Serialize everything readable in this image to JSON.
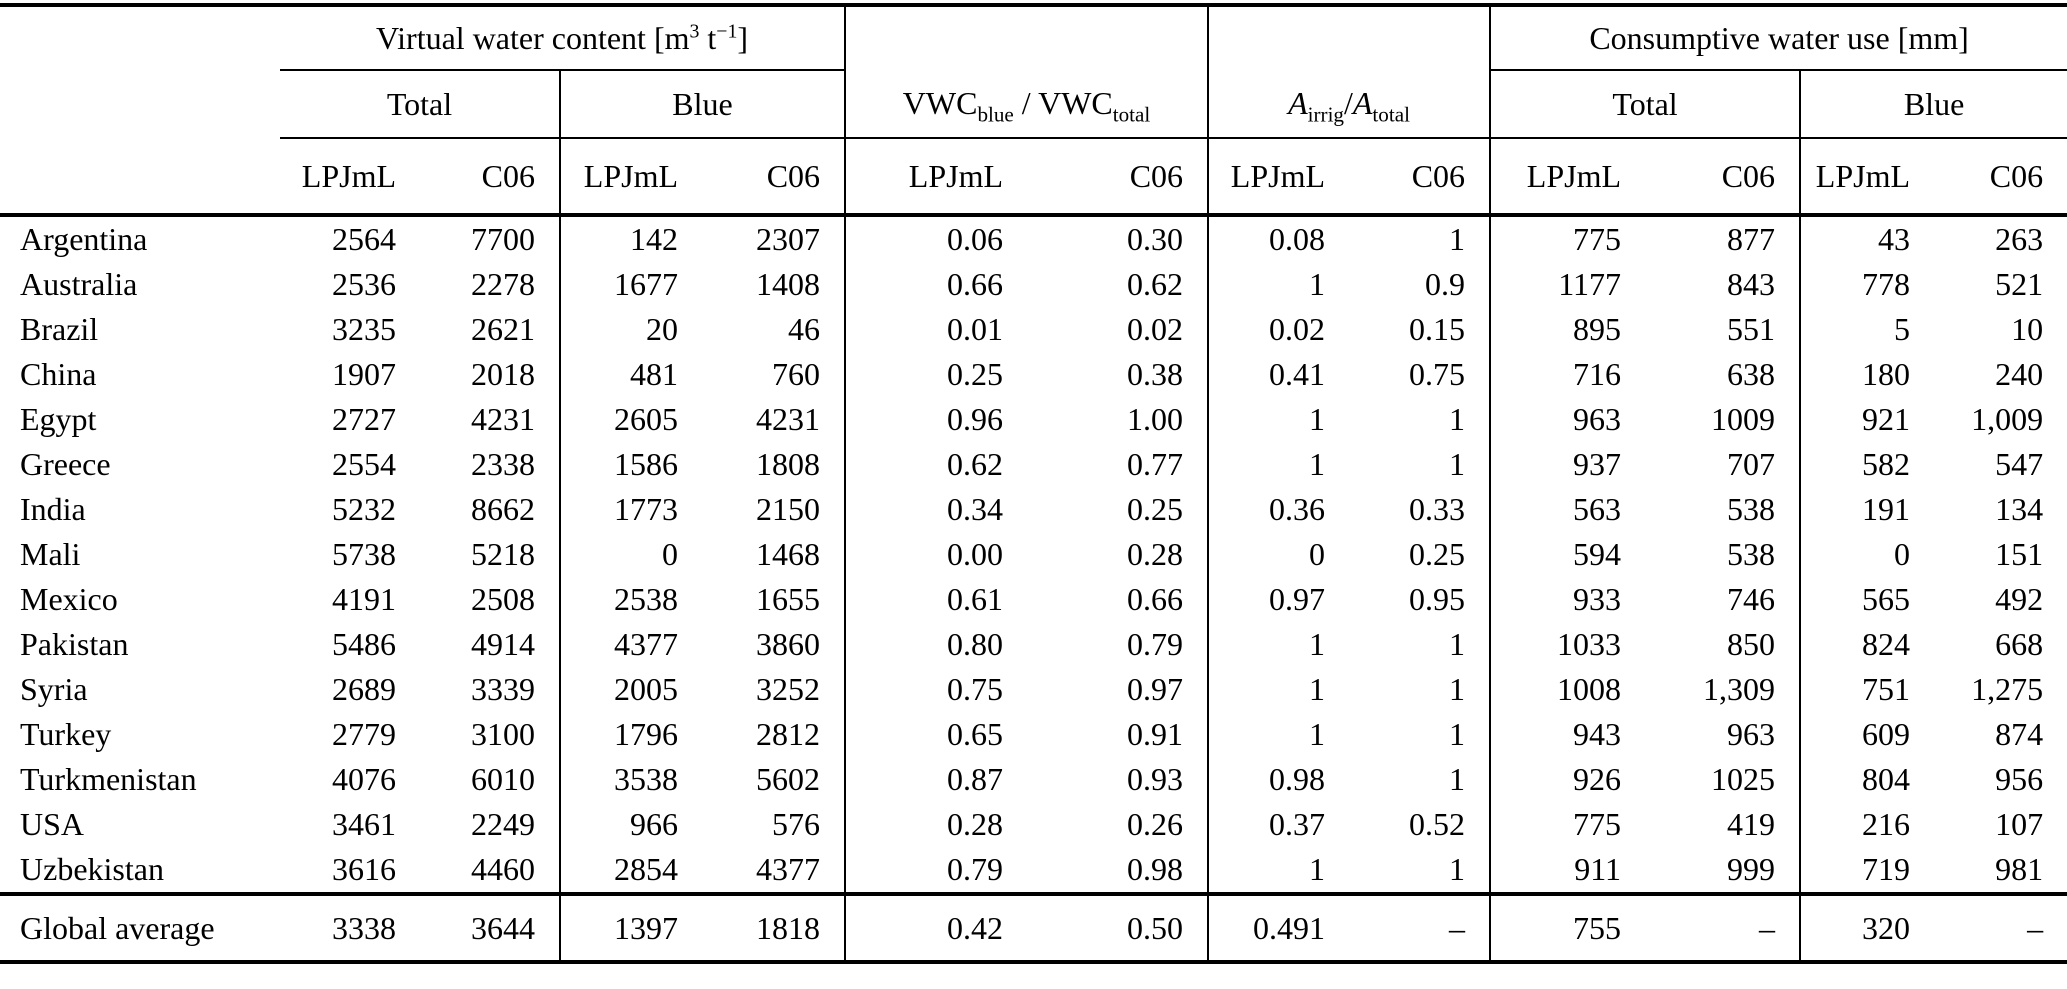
{
  "page": {
    "background": "#ffffff",
    "text_color": "#000000"
  },
  "headers": {
    "vwc": {
      "pre": "Virtual water content [m",
      "sup1": "3",
      "mid": " t",
      "sup2": "−1",
      "post": "]"
    },
    "cwu": "Consumptive water use [mm]",
    "total": "Total",
    "blue": "Blue",
    "vwc_ratio": {
      "base1": "VWC",
      "sub1": "blue",
      "sep": " / ",
      "base2": "VWC",
      "sub2": "total"
    },
    "area_ratio": {
      "base1": "A",
      "sub1": "irrig",
      "sep": "/",
      "base2": "A",
      "sub2": "total"
    },
    "lpjml": "LPJmL",
    "c06": "C06"
  },
  "table": {
    "rows": [
      [
        "Argentina",
        "2564",
        "7700",
        "142",
        "2307",
        "0.06",
        "0.30",
        "0.08",
        "1",
        "775",
        "877",
        "43",
        "263"
      ],
      [
        "Australia",
        "2536",
        "2278",
        "1677",
        "1408",
        "0.66",
        "0.62",
        "1",
        "0.9",
        "1177",
        "843",
        "778",
        "521"
      ],
      [
        "Brazil",
        "3235",
        "2621",
        "20",
        "46",
        "0.01",
        "0.02",
        "0.02",
        "0.15",
        "895",
        "551",
        "5",
        "10"
      ],
      [
        "China",
        "1907",
        "2018",
        "481",
        "760",
        "0.25",
        "0.38",
        "0.41",
        "0.75",
        "716",
        "638",
        "180",
        "240"
      ],
      [
        "Egypt",
        "2727",
        "4231",
        "2605",
        "4231",
        "0.96",
        "1.00",
        "1",
        "1",
        "963",
        "1009",
        "921",
        "1,009"
      ],
      [
        "Greece",
        "2554",
        "2338",
        "1586",
        "1808",
        "0.62",
        "0.77",
        "1",
        "1",
        "937",
        "707",
        "582",
        "547"
      ],
      [
        "India",
        "5232",
        "8662",
        "1773",
        "2150",
        "0.34",
        "0.25",
        "0.36",
        "0.33",
        "563",
        "538",
        "191",
        "134"
      ],
      [
        "Mali",
        "5738",
        "5218",
        "0",
        "1468",
        "0.00",
        "0.28",
        "0",
        "0.25",
        "594",
        "538",
        "0",
        "151"
      ],
      [
        "Mexico",
        "4191",
        "2508",
        "2538",
        "1655",
        "0.61",
        "0.66",
        "0.97",
        "0.95",
        "933",
        "746",
        "565",
        "492"
      ],
      [
        "Pakistan",
        "5486",
        "4914",
        "4377",
        "3860",
        "0.80",
        "0.79",
        "1",
        "1",
        "1033",
        "850",
        "824",
        "668"
      ],
      [
        "Syria",
        "2689",
        "3339",
        "2005",
        "3252",
        "0.75",
        "0.97",
        "1",
        "1",
        "1008",
        "1,309",
        "751",
        "1,275"
      ],
      [
        "Turkey",
        "2779",
        "3100",
        "1796",
        "2812",
        "0.65",
        "0.91",
        "1",
        "1",
        "943",
        "963",
        "609",
        "874"
      ],
      [
        "Turkmenistan",
        "4076",
        "6010",
        "3538",
        "5602",
        "0.87",
        "0.93",
        "0.98",
        "1",
        "926",
        "1025",
        "804",
        "956"
      ],
      [
        "USA",
        "3461",
        "2249",
        "966",
        "576",
        "0.28",
        "0.26",
        "0.37",
        "0.52",
        "775",
        "419",
        "216",
        "107"
      ],
      [
        "Uzbekistan",
        "3616",
        "4460",
        "2854",
        "4377",
        "0.79",
        "0.98",
        "1",
        "1",
        "911",
        "999",
        "719",
        "981"
      ]
    ],
    "footer_row": [
      "Global average",
      "3338",
      "3644",
      "1397",
      "1818",
      "0.42",
      "0.50",
      "0.491",
      "–",
      "755",
      "–",
      "320",
      "–"
    ]
  }
}
